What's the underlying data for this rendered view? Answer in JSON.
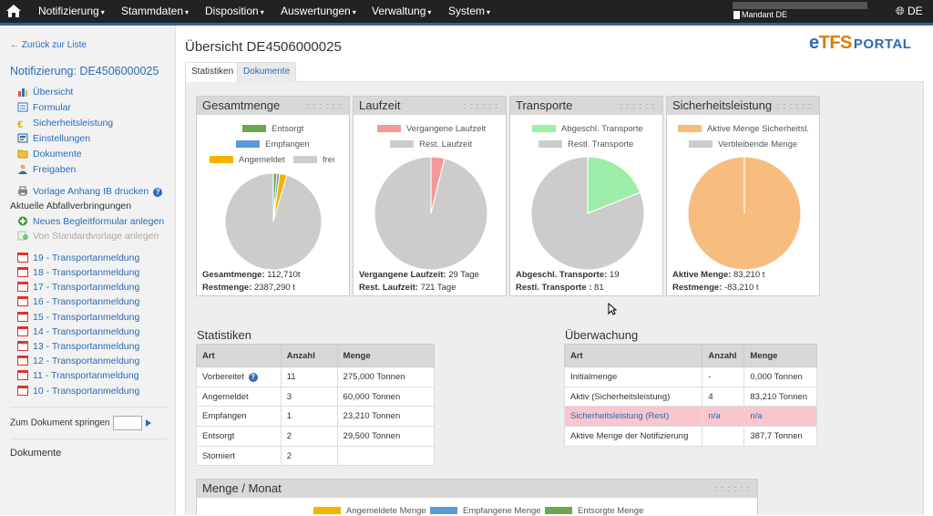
{
  "nav": {
    "menus": [
      "Notifizierung",
      "Stammdaten",
      "Disposition",
      "Auswertungen",
      "Verwaltung",
      "System"
    ],
    "mandant": "Mandant DE",
    "lang": "DE"
  },
  "sidebar": {
    "back": "Zurück zur Liste",
    "title": "Notifizierung: DE4506000025",
    "items": [
      {
        "label": "Übersicht",
        "icon": "chart-icon"
      },
      {
        "label": "Formular",
        "icon": "form-icon"
      },
      {
        "label": "Sicherheitsleistung",
        "icon": "euro-icon"
      },
      {
        "label": "Einstellungen",
        "icon": "settings-icon"
      },
      {
        "label": "Dokumente",
        "icon": "folder-icon"
      },
      {
        "label": "Freigaben",
        "icon": "person-icon"
      }
    ],
    "print": "Vorlage Anhang IB drucken",
    "section_head": "Aktuelle Abfallverbringungen",
    "new_form": "Neues Begleitformular anlegen",
    "from_template": "Von Standardvorlage anlegen",
    "transports": [
      "19 - Transportanmeldung",
      "18 - Transportanmeldung",
      "17 - Transportanmeldung",
      "16 - Transportanmeldung",
      "15 - Transportanmeldung",
      "14 - Transportanmeldung",
      "13 - Transportanmeldung",
      "12 - Transportanmeldung",
      "11 - Transportanmeldung",
      "10 - Transportanmeldung"
    ],
    "jump": "Zum Dokument springen",
    "documents": "Dokumente"
  },
  "main": {
    "title": "Übersicht DE4506000025",
    "logo": {
      "e": "e",
      "tfs": "TFS",
      "portal": "PORTAL"
    },
    "tabs": [
      "Statistiken",
      "Dokumente"
    ],
    "grip": ": : : : : :",
    "panels": [
      {
        "title": "Gesamtmenge",
        "legend": [
          {
            "label": "Entsorgt",
            "color": "#6aa84f"
          },
          {
            "label": "Empfangen",
            "color": "#5b9bd5"
          },
          {
            "label": "Angemeldet",
            "color": "#f4b400"
          },
          {
            "label": "frei",
            "color": "#cccccc"
          }
        ],
        "stats": [
          {
            "k": "Gesamtmenge:",
            "v": " 112,710t"
          },
          {
            "k": "Restmenge:",
            "v": " 2387,290 t"
          }
        ]
      },
      {
        "title": "Laufzeit",
        "legend": [
          {
            "label": "Vergangene Laufzeit",
            "color": "#f4999b"
          },
          {
            "label": "Rest. Laufzeit",
            "color": "#cccccc"
          }
        ],
        "stats": [
          {
            "k": "Vergangene Laufzeit:",
            "v": " 29 Tage"
          },
          {
            "k": "Rest. Laufzeit:",
            "v": " 721 Tage"
          }
        ]
      },
      {
        "title": "Transporte",
        "legend": [
          {
            "label": "Abgeschl. Transporte",
            "color": "#9eeda8"
          },
          {
            "label": "Restl. Transporte",
            "color": "#cccccc"
          }
        ],
        "stats": [
          {
            "k": "Abgeschl. Transporte:",
            "v": " 19"
          },
          {
            "k": "Restl. Transporte :",
            "v": " 81"
          }
        ]
      },
      {
        "title": "Sicherheitsleistung",
        "legend": [
          {
            "label": "Aktive Menge Sicherheitsl.",
            "color": "#f6bd7f"
          },
          {
            "label": "Verbleibende Menge",
            "color": "#cccccc"
          }
        ],
        "stats": [
          {
            "k": "Aktive Menge:",
            "v": " 83,210 t"
          },
          {
            "k": "Restmenge:",
            "v": " -83,210 t"
          }
        ]
      }
    ],
    "statistiken": {
      "title": "Statistiken",
      "headers": [
        "Art",
        "Anzahl",
        "Menge"
      ],
      "rows": [
        [
          "Vorbereitet",
          "11",
          "275,000 Tonnen"
        ],
        [
          "Angemeldet",
          "3",
          "60,000 Tonnen"
        ],
        [
          "Empfangen",
          "1",
          "23,210 Tonnen"
        ],
        [
          "Entsorgt",
          "2",
          "29,500 Tonnen"
        ],
        [
          "Storniert",
          "2",
          ""
        ]
      ]
    },
    "ueberwachung": {
      "title": "Überwachung",
      "headers": [
        "Art",
        "Anzahl",
        "Menge"
      ],
      "rows": [
        [
          "Initialmenge",
          "-",
          "0,000 Tonnen"
        ],
        [
          "Aktiv (Sicherheitsleistung)",
          "4",
          "83,210 Tonnen"
        ],
        [
          "Sicherheitsleistung (Rest)",
          "n/a",
          "n/a"
        ],
        [
          "Aktive Menge der Notifizierung",
          "",
          "387,7 Tonnen"
        ]
      ]
    },
    "menge_monat": {
      "title": "Menge / Monat",
      "legend": [
        {
          "label": "Angemeldete Menge",
          "color": "#f4b400"
        },
        {
          "label": "Empfangene Menge",
          "color": "#5b9bd5"
        },
        {
          "label": "Entsorgte Menge",
          "color": "#6aa84f"
        }
      ]
    }
  },
  "chart_data": [
    {
      "type": "pie",
      "title": "Gesamtmenge",
      "labels": [
        "Entsorgt",
        "Empfangen",
        "Angemeldet",
        "frei"
      ],
      "values": [
        29.5,
        23.21,
        60.0,
        2387.29
      ],
      "colors": [
        "#6aa84f",
        "#5b9bd5",
        "#f4b400",
        "#cccccc"
      ]
    },
    {
      "type": "pie",
      "title": "Laufzeit",
      "labels": [
        "Vergangene Laufzeit",
        "Rest. Laufzeit"
      ],
      "values": [
        29,
        721
      ],
      "colors": [
        "#f4999b",
        "#cccccc"
      ]
    },
    {
      "type": "pie",
      "title": "Transporte",
      "labels": [
        "Abgeschl. Transporte",
        "Restl. Transporte"
      ],
      "values": [
        19,
        81
      ],
      "colors": [
        "#9eeda8",
        "#cccccc"
      ]
    },
    {
      "type": "pie",
      "title": "Sicherheitsleistung",
      "labels": [
        "Aktive Menge Sicherheitsl.",
        "Verbleibende Menge"
      ],
      "values": [
        83.21,
        0
      ],
      "colors": [
        "#f6bd7f",
        "#cccccc"
      ]
    }
  ]
}
